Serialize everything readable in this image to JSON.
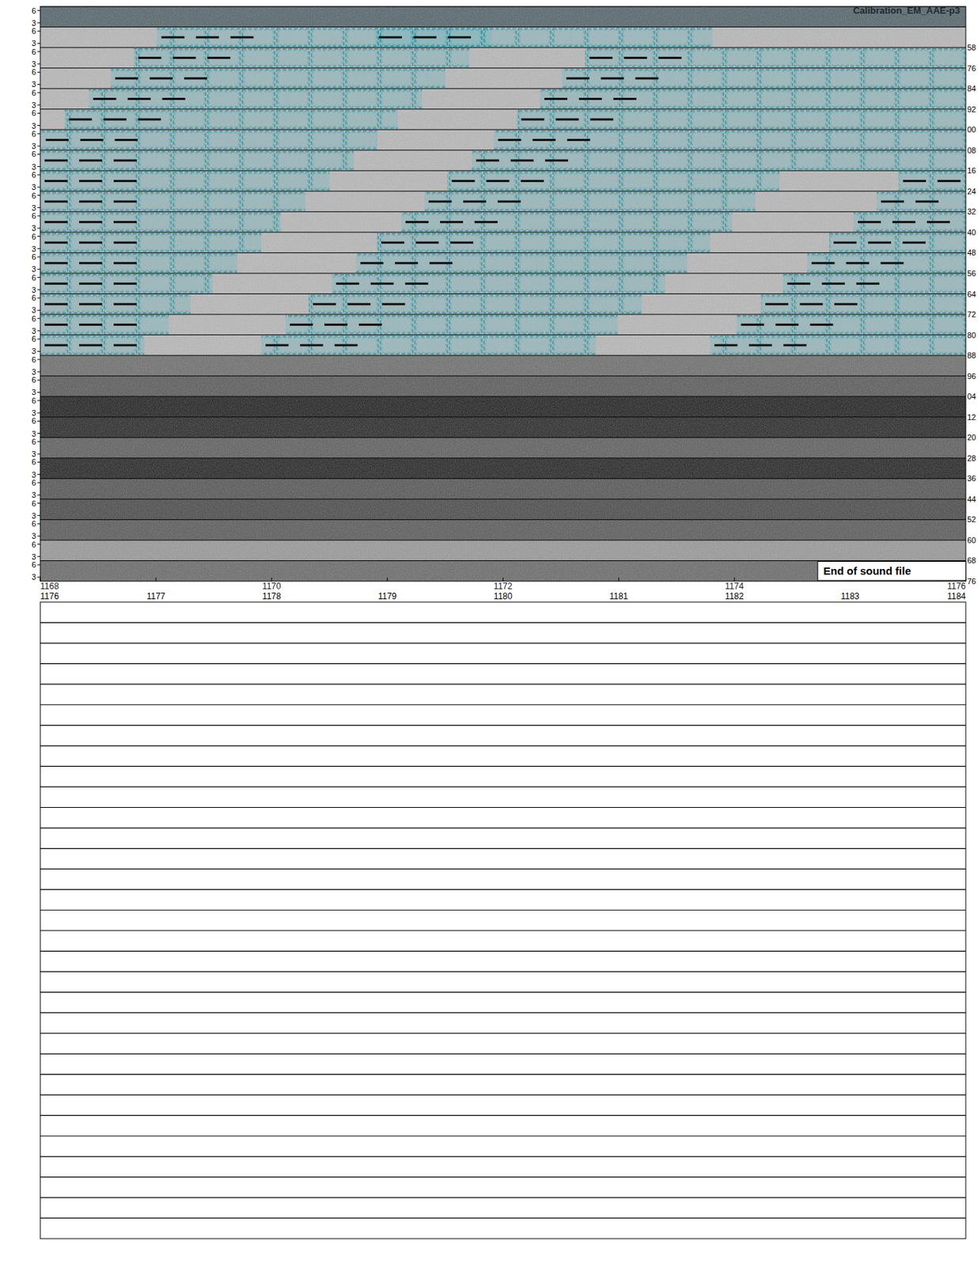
{
  "chart_data": {
    "type": "spectrogram_rows",
    "title": "Calibration_EM_AAE-p3",
    "xlim": [
      1176,
      1184
    ],
    "xticks": [
      1176,
      1177,
      1178,
      1179,
      1180,
      1181,
      1182,
      1183,
      1184
    ],
    "x2lim": [
      1168,
      1176
    ],
    "x2ticks": [
      1168,
      1170,
      1172,
      1174,
      1176
    ],
    "ylim": [
      2,
      7
    ],
    "yticks": [
      3,
      6
    ],
    "annotation": {
      "text": "End of sound file",
      "x": 1182.72
    },
    "rows": [
      {
        "color": "#56666c",
        "right_label": null,
        "detections": []
      },
      {
        "color": "#b9b9b9",
        "right_label": "58",
        "detections": [
          [
            1177.01,
            1179.9
          ],
          [
            1178.89,
            1181.81
          ]
        ]
      },
      {
        "color": "#b9b9b9",
        "right_label": "76",
        "detections": [
          [
            1176.81,
            1179.71
          ],
          [
            1180.71,
            1184
          ]
        ]
      },
      {
        "color": "#b9b9b9",
        "right_label": "84",
        "detections": [
          [
            1176.61,
            1179.5
          ],
          [
            1180.51,
            1184
          ]
        ]
      },
      {
        "color": "#b9b9b9",
        "right_label": "92",
        "detections": [
          [
            1176.42,
            1179.3
          ],
          [
            1180.32,
            1184
          ]
        ]
      },
      {
        "color": "#b9b9b9",
        "right_label": "00",
        "detections": [
          [
            1176.21,
            1179.09
          ],
          [
            1180.12,
            1184
          ]
        ]
      },
      {
        "color": "#b9b9b9",
        "right_label": "08",
        "detections": [
          [
            1176.01,
            1178.91
          ],
          [
            1179.92,
            1184
          ]
        ]
      },
      {
        "color": "#b9b9b9",
        "right_label": "16",
        "detections": [
          [
            1176,
            1178.71
          ],
          [
            1179.73,
            1184
          ]
        ]
      },
      {
        "color": "#b9b9b9",
        "right_label": "24",
        "detections": [
          [
            1176,
            1178.5
          ],
          [
            1179.52,
            1182.39
          ],
          [
            1183.42,
            1184
          ]
        ]
      },
      {
        "color": "#b9b9b9",
        "right_label": "32",
        "detections": [
          [
            1176,
            1178.29
          ],
          [
            1179.32,
            1182.18
          ],
          [
            1183.23,
            1184
          ]
        ]
      },
      {
        "color": "#b9b9b9",
        "right_label": "40",
        "detections": [
          [
            1176,
            1178.08
          ],
          [
            1179.12,
            1181.98
          ],
          [
            1183.03,
            1184
          ]
        ]
      },
      {
        "color": "#b9b9b9",
        "right_label": "48",
        "detections": [
          [
            1176,
            1177.91
          ],
          [
            1178.91,
            1181.79
          ],
          [
            1182.82,
            1184
          ]
        ]
      },
      {
        "color": "#b9b9b9",
        "right_label": "56",
        "detections": [
          [
            1176,
            1177.7
          ],
          [
            1178.73,
            1181.59
          ],
          [
            1182.63,
            1184
          ]
        ]
      },
      {
        "color": "#b9b9b9",
        "right_label": "64",
        "detections": [
          [
            1176,
            1177.49
          ],
          [
            1178.52,
            1181.4
          ],
          [
            1182.42,
            1184
          ]
        ]
      },
      {
        "color": "#b9b9b9",
        "right_label": "72",
        "detections": [
          [
            1176,
            1177.3
          ],
          [
            1178.32,
            1181.2
          ],
          [
            1182.23,
            1184
          ]
        ]
      },
      {
        "color": "#b9b9b9",
        "right_label": "80",
        "detections": [
          [
            1176,
            1177.11
          ],
          [
            1178.12,
            1180.99
          ],
          [
            1182.02,
            1184
          ]
        ]
      },
      {
        "color": "#b9b9b9",
        "right_label": "88",
        "detections": [
          [
            1176,
            1176.9
          ],
          [
            1177.91,
            1180.8
          ],
          [
            1181.79,
            1184
          ]
        ]
      },
      {
        "color": "#707070",
        "right_label": "96",
        "detections": []
      },
      {
        "color": "#5c5c5c",
        "right_label": "04",
        "detections": []
      },
      {
        "color": "#232323",
        "right_label": "12",
        "detections": []
      },
      {
        "color": "#2b2b2b",
        "right_label": "20",
        "detections": []
      },
      {
        "color": "#606060",
        "right_label": "28",
        "detections": []
      },
      {
        "color": "#272727",
        "right_label": "36",
        "detections": []
      },
      {
        "color": "#575757",
        "right_label": "44",
        "detections": []
      },
      {
        "color": "#4c4c4c",
        "right_label": "52",
        "detections": []
      },
      {
        "color": "#5c5c5c",
        "right_label": "60",
        "detections": []
      },
      {
        "color": "#9a9a9a",
        "right_label": "68",
        "detections": []
      },
      {
        "color": "#6c6c6c",
        "right_label": "76",
        "detections": []
      }
    ]
  }
}
